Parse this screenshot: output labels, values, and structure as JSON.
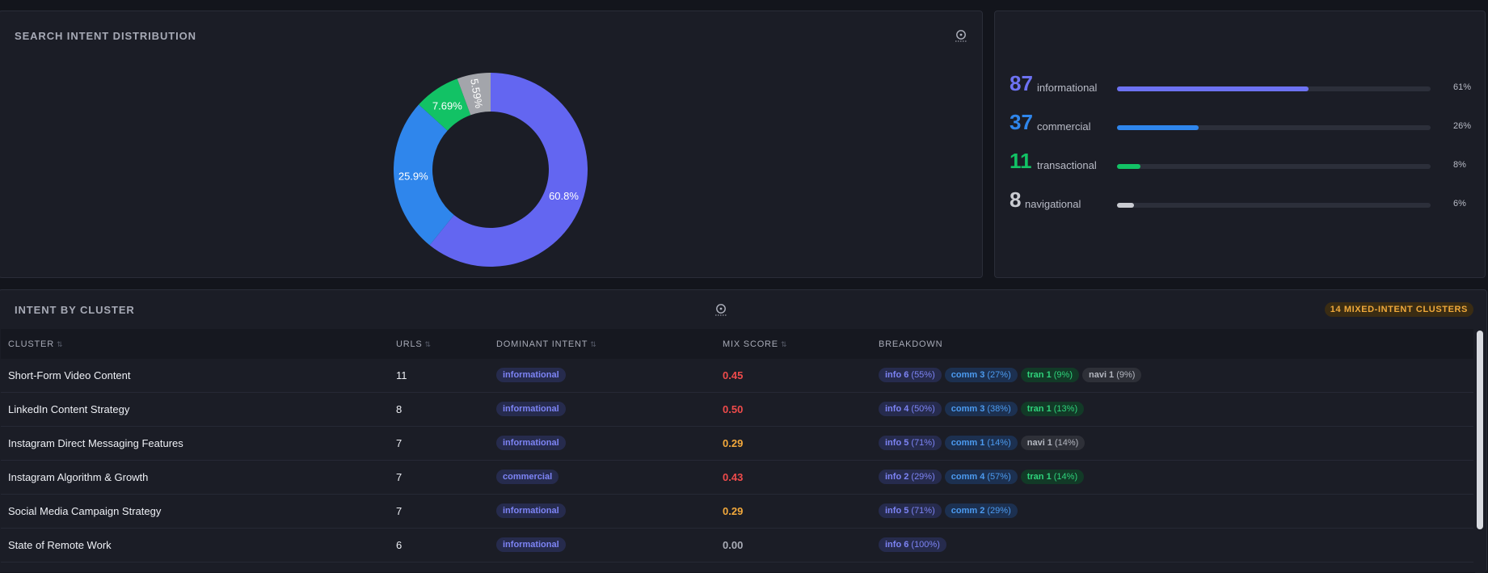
{
  "pie_panel": {
    "title": "SEARCH INTENT DISTRIBUTION",
    "info_icon": "info-icon"
  },
  "chart_data": {
    "type": "pie",
    "donut": true,
    "categories": [
      "informational",
      "commercial",
      "transactional",
      "navigational"
    ],
    "values": [
      60.8,
      25.9,
      7.69,
      5.59
    ],
    "labels": [
      "60.8%",
      "25.9%",
      "7.69%",
      "5.59%"
    ],
    "colors": [
      "#6366f1",
      "#2f86ec",
      "#12c265",
      "#a3a5ab"
    ],
    "title": "SEARCH INTENT DISTRIBUTION"
  },
  "summary": {
    "rows": [
      {
        "count": "87",
        "label": "informational",
        "pct": "61%",
        "fraction": 0.61,
        "color": "#6d72f2"
      },
      {
        "count": "37",
        "label": "commercial",
        "pct": "26%",
        "fraction": 0.26,
        "color": "#2f86ec"
      },
      {
        "count": "11",
        "label": "transactional",
        "pct": "8%",
        "fraction": 0.075,
        "color": "#12c265"
      },
      {
        "count": "8",
        "label": "navigational",
        "pct": "6%",
        "fraction": 0.055,
        "color": "#c9cbd1"
      }
    ]
  },
  "cluster_panel": {
    "title": "INTENT BY CLUSTER",
    "badge": "14 MIXED-INTENT CLUSTERS",
    "columns": {
      "cluster": "CLUSTER",
      "urls": "URLS",
      "dominant": "DOMINANT INTENT",
      "mix": "MIX SCORE",
      "breakdown": "BREAKDOWN"
    },
    "rows": [
      {
        "cluster": "Short-Form Video Content",
        "urls": "11",
        "dominant": "informational",
        "mix": "0.45",
        "mix_color": "#ef4b4b",
        "breakdown": [
          {
            "type": "info",
            "name": "info 6",
            "pct": "(55%)"
          },
          {
            "type": "comm",
            "name": "comm 3",
            "pct": "(27%)"
          },
          {
            "type": "tran",
            "name": "tran 1",
            "pct": "(9%)"
          },
          {
            "type": "navi",
            "name": "navi 1",
            "pct": "(9%)"
          }
        ]
      },
      {
        "cluster": "LinkedIn Content Strategy",
        "urls": "8",
        "dominant": "informational",
        "mix": "0.50",
        "mix_color": "#ef4b4b",
        "breakdown": [
          {
            "type": "info",
            "name": "info 4",
            "pct": "(50%)"
          },
          {
            "type": "comm",
            "name": "comm 3",
            "pct": "(38%)"
          },
          {
            "type": "tran",
            "name": "tran 1",
            "pct": "(13%)"
          }
        ]
      },
      {
        "cluster": "Instagram Direct Messaging Features",
        "urls": "7",
        "dominant": "informational",
        "mix": "0.29",
        "mix_color": "#f3a93c",
        "breakdown": [
          {
            "type": "info",
            "name": "info 5",
            "pct": "(71%)"
          },
          {
            "type": "comm",
            "name": "comm 1",
            "pct": "(14%)"
          },
          {
            "type": "navi",
            "name": "navi 1",
            "pct": "(14%)"
          }
        ]
      },
      {
        "cluster": "Instagram Algorithm & Growth",
        "urls": "7",
        "dominant": "commercial",
        "mix": "0.43",
        "mix_color": "#ef4b4b",
        "breakdown": [
          {
            "type": "info",
            "name": "info 2",
            "pct": "(29%)"
          },
          {
            "type": "comm",
            "name": "comm 4",
            "pct": "(57%)"
          },
          {
            "type": "tran",
            "name": "tran 1",
            "pct": "(14%)"
          }
        ]
      },
      {
        "cluster": "Social Media Campaign Strategy",
        "urls": "7",
        "dominant": "informational",
        "mix": "0.29",
        "mix_color": "#f3a93c",
        "breakdown": [
          {
            "type": "info",
            "name": "info 5",
            "pct": "(71%)"
          },
          {
            "type": "comm",
            "name": "comm 2",
            "pct": "(29%)"
          }
        ]
      },
      {
        "cluster": "State of Remote Work",
        "urls": "6",
        "dominant": "informational",
        "mix": "0.00",
        "mix_color": "#a9acb6",
        "breakdown": [
          {
            "type": "info",
            "name": "info 6",
            "pct": "(100%)"
          }
        ]
      }
    ]
  }
}
